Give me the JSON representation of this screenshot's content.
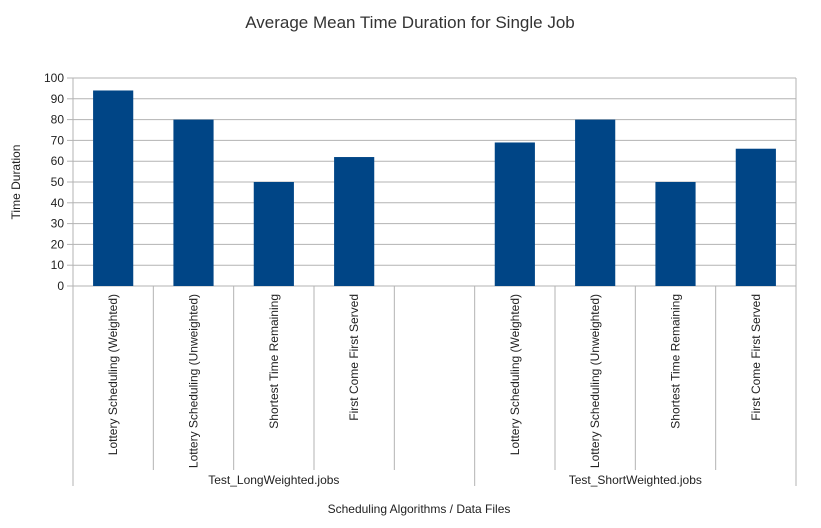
{
  "chart_data": {
    "type": "bar",
    "title": "Average Mean Time Duration for Single Job",
    "xlabel": "Scheduling Algorithms / Data Files",
    "ylabel": "Time Duration",
    "ylim": [
      0,
      100
    ],
    "yticks": [
      0,
      10,
      20,
      30,
      40,
      50,
      60,
      70,
      80,
      90,
      100
    ],
    "grid": true,
    "legend": "none",
    "bar_color": "#004586",
    "groups": [
      {
        "label": "Test_LongWeighted.jobs",
        "categories": [
          "Lottery Scheduling (Weighted)",
          "Lottery Scheduling (Unweighted)",
          "Shortest Time Remaining",
          "First Come First Served",
          ""
        ],
        "values": [
          94,
          80,
          50,
          62,
          null
        ]
      },
      {
        "label": "Test_ShortWeighted.jobs",
        "categories": [
          "Lottery Scheduling (Weighted)",
          "Lottery Scheduling (Unweighted)",
          "Shortest Time Remaining",
          "First Come First Served"
        ],
        "values": [
          69,
          80,
          50,
          66
        ]
      }
    ]
  }
}
